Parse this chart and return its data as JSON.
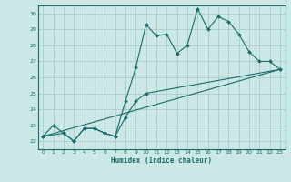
{
  "xlabel": "Humidex (Indice chaleur)",
  "bg_color": "#cce8e6",
  "grid_color": "#aaccca",
  "line_color": "#1a6b6b",
  "xlim": [
    -0.5,
    23.5
  ],
  "ylim": [
    21.5,
    30.5
  ],
  "xticks": [
    0,
    1,
    2,
    3,
    4,
    5,
    6,
    7,
    8,
    9,
    10,
    11,
    12,
    13,
    14,
    15,
    16,
    17,
    18,
    19,
    20,
    21,
    22,
    23
  ],
  "yticks": [
    22,
    23,
    24,
    25,
    26,
    27,
    28,
    29,
    30
  ],
  "line1_x": [
    0,
    1,
    2,
    3,
    4,
    5,
    6,
    7,
    8,
    9,
    10,
    11,
    12,
    13,
    14,
    15,
    16,
    17,
    18,
    19,
    20,
    21,
    22,
    23
  ],
  "line1_y": [
    22.3,
    23.0,
    22.5,
    22.0,
    22.8,
    22.8,
    22.5,
    22.3,
    24.5,
    26.6,
    29.3,
    28.6,
    28.7,
    27.5,
    28.0,
    30.3,
    29.0,
    29.8,
    29.5,
    28.7,
    27.6,
    27.0,
    27.0,
    26.5
  ],
  "line2_x": [
    0,
    2,
    3,
    4,
    5,
    6,
    7,
    8,
    9,
    10,
    23
  ],
  "line2_y": [
    22.3,
    22.5,
    22.0,
    22.8,
    22.8,
    22.5,
    22.3,
    23.5,
    24.5,
    25.0,
    26.5
  ],
  "line3_x": [
    0,
    23
  ],
  "line3_y": [
    22.3,
    26.5
  ]
}
